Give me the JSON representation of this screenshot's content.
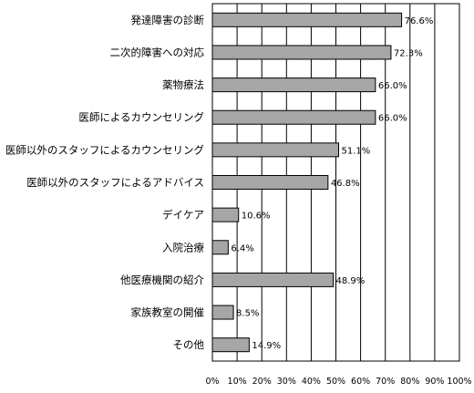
{
  "chart_data": {
    "type": "bar",
    "orientation": "horizontal",
    "categories": [
      "発達障害の診断",
      "二次的障害への対応",
      "薬物療法",
      "医師によるカウンセリング",
      "医師以外のスタッフによるカウンセリング",
      "医師以外のスタッフによるアドバイス",
      "デイケア",
      "入院治療",
      "他医療機関の紹介",
      "家族教室の開催",
      "その他"
    ],
    "values": [
      76.6,
      72.3,
      66.0,
      66.0,
      51.1,
      46.8,
      10.6,
      6.4,
      48.9,
      8.5,
      14.9
    ],
    "value_labels": [
      "76.6%",
      "72.3%",
      "66.0%",
      "66.0%",
      "51.1%",
      "46.8%",
      "10.6%",
      "6.4%",
      "48.9%",
      "8.5%",
      "14.9%"
    ],
    "xlim": [
      0,
      100
    ],
    "xticks": [
      "0%",
      "10%",
      "20%",
      "30%",
      "40%",
      "50%",
      "60%",
      "70%",
      "80%",
      "90%",
      "100%"
    ],
    "grid": true,
    "legend": "none",
    "bar_color": "#a6a6a6",
    "title": "",
    "xlabel": "",
    "ylabel": ""
  }
}
